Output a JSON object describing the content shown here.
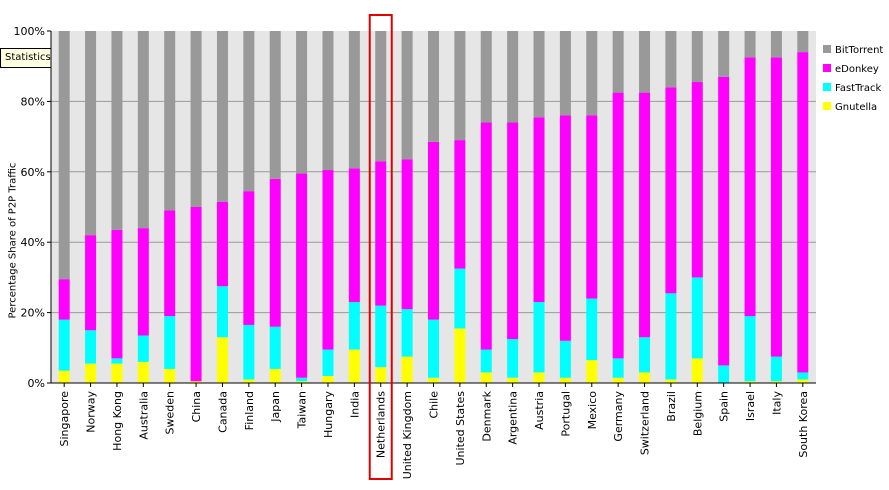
{
  "tooltip": {
    "text": "Statistics in Peer-to-..."
  },
  "chart_data": {
    "type": "bar",
    "stacked": true,
    "ylabel": "Percentage Share of P2P Traffic",
    "ylim": [
      0,
      100
    ],
    "yticks": [
      "0%",
      "20%",
      "40%",
      "60%",
      "80%",
      "100%"
    ],
    "grid": true,
    "legend_position": "right",
    "highlighted_category": "Netherlands",
    "highlight_color": "#e00000",
    "categories": [
      "Singapore",
      "Norway",
      "Hong Kong",
      "Australia",
      "Sweden",
      "China",
      "Canada",
      "Finland",
      "Japan",
      "Taiwan",
      "Hungary",
      "India",
      "Netherlands",
      "United Kingdom",
      "Chile",
      "United States",
      "Denmark",
      "Argentina",
      "Austria",
      "Portugal",
      "Mexico",
      "Germany",
      "Switzerland",
      "Brazil",
      "Belgium",
      "Spain",
      "Israel",
      "Italy",
      "South Korea"
    ],
    "series": [
      {
        "name": "Gnutella",
        "color": "#ffff00",
        "values": [
          3.5,
          5.5,
          5.5,
          6,
          4,
          0.5,
          13,
          1,
          4,
          0.5,
          2,
          9.5,
          4.5,
          7.5,
          1.5,
          15.5,
          3,
          1.5,
          3,
          1.5,
          6.5,
          1.5,
          3,
          1,
          7,
          0,
          0.5,
          0.5,
          1
        ]
      },
      {
        "name": "FastTrack",
        "color": "#00ffff",
        "values": [
          14.5,
          9.5,
          1.5,
          7.5,
          15,
          0,
          14.5,
          15.5,
          12,
          1,
          7.5,
          13.5,
          17.5,
          13.5,
          16.5,
          17,
          6.5,
          11,
          20,
          10.5,
          17.5,
          5.5,
          10,
          24.5,
          23,
          5,
          18.5,
          7,
          2
        ]
      },
      {
        "name": "eDonkey",
        "color": "#ff00ff",
        "values": [
          11.5,
          27,
          36.5,
          30.5,
          30,
          49.5,
          24,
          38,
          42,
          58,
          51,
          38,
          41,
          42.5,
          50.5,
          36.5,
          64.5,
          61.5,
          52.5,
          64,
          52,
          75.5,
          69.5,
          58.5,
          55.5,
          82,
          73.5,
          85,
          91
        ]
      },
      {
        "name": "BitTorrent",
        "color": "#999999",
        "values": [
          70.5,
          58,
          56.5,
          56,
          51,
          50,
          48.5,
          45.5,
          42,
          40.5,
          39.5,
          39,
          37,
          36.5,
          31.5,
          31,
          26,
          26,
          24.5,
          24,
          24,
          17.5,
          17.5,
          16,
          14.5,
          13,
          7.5,
          7.5,
          6
        ]
      }
    ]
  }
}
